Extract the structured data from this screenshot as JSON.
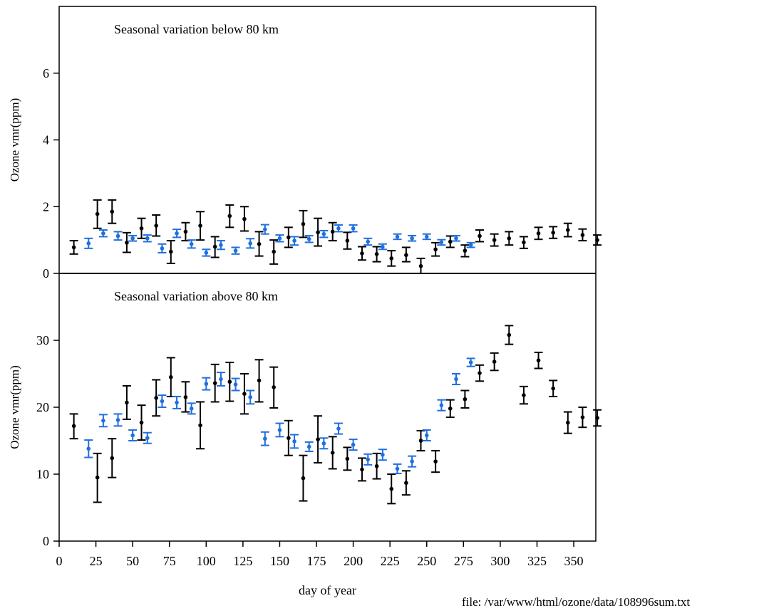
{
  "footer": {
    "file_label": "file: /var/www/html/ozone/data/108996sum.txt"
  },
  "colors": {
    "series_a": "#000000",
    "series_b": "#1f6fe0"
  },
  "chart_data": [
    {
      "type": "scatter",
      "title": "Seasonal variation below 80 km",
      "xlabel": "",
      "ylabel": "Ozone vmr(ppm)",
      "xlim": [
        0,
        365
      ],
      "ylim": [
        0,
        8
      ],
      "yticks": [
        0,
        2,
        4,
        6
      ],
      "grid": false,
      "series": [
        {
          "color": "#000000",
          "points": [
            {
              "x": 10,
              "y": 0.78,
              "lo": 0.58,
              "hi": 0.98
            },
            {
              "x": 26,
              "y": 1.78,
              "lo": 1.35,
              "hi": 2.2
            },
            {
              "x": 36,
              "y": 1.85,
              "lo": 1.5,
              "hi": 2.2
            },
            {
              "x": 46,
              "y": 0.92,
              "lo": 0.63,
              "hi": 1.22
            },
            {
              "x": 56,
              "y": 1.35,
              "lo": 1.05,
              "hi": 1.65
            },
            {
              "x": 66,
              "y": 1.43,
              "lo": 1.12,
              "hi": 1.75
            },
            {
              "x": 76,
              "y": 0.65,
              "lo": 0.3,
              "hi": 0.98
            },
            {
              "x": 86,
              "y": 1.25,
              "lo": 0.98,
              "hi": 1.52
            },
            {
              "x": 96,
              "y": 1.43,
              "lo": 1.0,
              "hi": 1.85
            },
            {
              "x": 106,
              "y": 0.8,
              "lo": 0.48,
              "hi": 1.1
            },
            {
              "x": 116,
              "y": 1.72,
              "lo": 1.38,
              "hi": 2.05
            },
            {
              "x": 126,
              "y": 1.63,
              "lo": 1.27,
              "hi": 2.0
            },
            {
              "x": 136,
              "y": 0.88,
              "lo": 0.52,
              "hi": 1.25
            },
            {
              "x": 146,
              "y": 0.65,
              "lo": 0.28,
              "hi": 1.0
            },
            {
              "x": 156,
              "y": 1.08,
              "lo": 0.78,
              "hi": 1.38
            },
            {
              "x": 166,
              "y": 1.48,
              "lo": 1.08,
              "hi": 1.88
            },
            {
              "x": 176,
              "y": 1.23,
              "lo": 0.82,
              "hi": 1.65
            },
            {
              "x": 186,
              "y": 1.25,
              "lo": 0.98,
              "hi": 1.52
            },
            {
              "x": 196,
              "y": 0.98,
              "lo": 0.73,
              "hi": 1.23
            },
            {
              "x": 206,
              "y": 0.6,
              "lo": 0.4,
              "hi": 0.8
            },
            {
              "x": 216,
              "y": 0.58,
              "lo": 0.35,
              "hi": 0.8
            },
            {
              "x": 226,
              "y": 0.45,
              "lo": 0.22,
              "hi": 0.68
            },
            {
              "x": 236,
              "y": 0.55,
              "lo": 0.35,
              "hi": 0.78
            },
            {
              "x": 246,
              "y": 0.22,
              "lo": 0.0,
              "hi": 0.45
            },
            {
              "x": 256,
              "y": 0.72,
              "lo": 0.52,
              "hi": 0.92
            },
            {
              "x": 266,
              "y": 0.95,
              "lo": 0.78,
              "hi": 1.12
            },
            {
              "x": 276,
              "y": 0.68,
              "lo": 0.5,
              "hi": 0.85
            },
            {
              "x": 286,
              "y": 1.12,
              "lo": 0.95,
              "hi": 1.3
            },
            {
              "x": 296,
              "y": 1.0,
              "lo": 0.82,
              "hi": 1.18
            },
            {
              "x": 306,
              "y": 1.05,
              "lo": 0.85,
              "hi": 1.25
            },
            {
              "x": 316,
              "y": 0.93,
              "lo": 0.75,
              "hi": 1.1
            },
            {
              "x": 326,
              "y": 1.2,
              "lo": 1.02,
              "hi": 1.38
            },
            {
              "x": 336,
              "y": 1.22,
              "lo": 1.05,
              "hi": 1.4
            },
            {
              "x": 346,
              "y": 1.3,
              "lo": 1.1,
              "hi": 1.5
            },
            {
              "x": 356,
              "y": 1.15,
              "lo": 0.98,
              "hi": 1.33
            },
            {
              "x": 366,
              "y": 1.0,
              "lo": 0.85,
              "hi": 1.15
            }
          ]
        },
        {
          "color": "#1f6fe0",
          "points": [
            {
              "x": 20,
              "y": 0.9,
              "lo": 0.75,
              "hi": 1.05
            },
            {
              "x": 30,
              "y": 1.2,
              "lo": 1.1,
              "hi": 1.3
            },
            {
              "x": 40,
              "y": 1.12,
              "lo": 1.0,
              "hi": 1.25
            },
            {
              "x": 50,
              "y": 1.05,
              "lo": 0.97,
              "hi": 1.13
            },
            {
              "x": 60,
              "y": 1.05,
              "lo": 0.95,
              "hi": 1.15
            },
            {
              "x": 70,
              "y": 0.75,
              "lo": 0.62,
              "hi": 0.88
            },
            {
              "x": 80,
              "y": 1.2,
              "lo": 1.08,
              "hi": 1.32
            },
            {
              "x": 90,
              "y": 0.88,
              "lo": 0.76,
              "hi": 1.0
            },
            {
              "x": 100,
              "y": 0.62,
              "lo": 0.52,
              "hi": 0.72
            },
            {
              "x": 110,
              "y": 0.85,
              "lo": 0.72,
              "hi": 0.98
            },
            {
              "x": 120,
              "y": 0.68,
              "lo": 0.58,
              "hi": 0.78
            },
            {
              "x": 130,
              "y": 0.9,
              "lo": 0.76,
              "hi": 1.04
            },
            {
              "x": 140,
              "y": 1.32,
              "lo": 1.18,
              "hi": 1.46
            },
            {
              "x": 150,
              "y": 1.05,
              "lo": 0.95,
              "hi": 1.15
            },
            {
              "x": 160,
              "y": 0.98,
              "lo": 0.85,
              "hi": 1.1
            },
            {
              "x": 170,
              "y": 1.03,
              "lo": 0.93,
              "hi": 1.13
            },
            {
              "x": 180,
              "y": 1.18,
              "lo": 1.08,
              "hi": 1.28
            },
            {
              "x": 190,
              "y": 1.35,
              "lo": 1.25,
              "hi": 1.45
            },
            {
              "x": 200,
              "y": 1.35,
              "lo": 1.25,
              "hi": 1.45
            },
            {
              "x": 210,
              "y": 0.95,
              "lo": 0.85,
              "hi": 1.05
            },
            {
              "x": 220,
              "y": 0.8,
              "lo": 0.72,
              "hi": 0.88
            },
            {
              "x": 230,
              "y": 1.1,
              "lo": 1.02,
              "hi": 1.18
            },
            {
              "x": 240,
              "y": 1.05,
              "lo": 0.97,
              "hi": 1.13
            },
            {
              "x": 250,
              "y": 1.1,
              "lo": 1.02,
              "hi": 1.18
            },
            {
              "x": 260,
              "y": 0.93,
              "lo": 0.85,
              "hi": 1.01
            },
            {
              "x": 270,
              "y": 1.05,
              "lo": 0.97,
              "hi": 1.13
            },
            {
              "x": 280,
              "y": 0.85,
              "lo": 0.78,
              "hi": 0.92
            }
          ]
        }
      ]
    },
    {
      "type": "scatter",
      "title": "Seasonal variation above 80 km",
      "xlabel": "day of year",
      "ylabel": "Ozone vmr(ppm)",
      "xlim": [
        0,
        365
      ],
      "ylim": [
        0,
        40
      ],
      "yticks": [
        0,
        10,
        20,
        30
      ],
      "xticks": [
        0,
        25,
        50,
        75,
        100,
        125,
        150,
        175,
        200,
        225,
        250,
        275,
        300,
        325,
        350
      ],
      "grid": false,
      "series": [
        {
          "color": "#000000",
          "points": [
            {
              "x": 10,
              "y": 17.2,
              "lo": 15.3,
              "hi": 19.0
            },
            {
              "x": 26,
              "y": 9.5,
              "lo": 5.8,
              "hi": 13.1
            },
            {
              "x": 36,
              "y": 12.4,
              "lo": 9.5,
              "hi": 15.3
            },
            {
              "x": 46,
              "y": 20.7,
              "lo": 18.2,
              "hi": 23.2
            },
            {
              "x": 56,
              "y": 17.7,
              "lo": 15.1,
              "hi": 20.3
            },
            {
              "x": 66,
              "y": 21.4,
              "lo": 18.7,
              "hi": 24.1
            },
            {
              "x": 76,
              "y": 24.5,
              "lo": 21.6,
              "hi": 27.4
            },
            {
              "x": 86,
              "y": 21.5,
              "lo": 19.3,
              "hi": 23.8
            },
            {
              "x": 96,
              "y": 17.3,
              "lo": 13.8,
              "hi": 20.8
            },
            {
              "x": 106,
              "y": 23.6,
              "lo": 20.8,
              "hi": 26.4
            },
            {
              "x": 116,
              "y": 23.8,
              "lo": 20.9,
              "hi": 26.7
            },
            {
              "x": 126,
              "y": 22.0,
              "lo": 19.0,
              "hi": 25.0
            },
            {
              "x": 136,
              "y": 24.0,
              "lo": 20.8,
              "hi": 27.1
            },
            {
              "x": 146,
              "y": 23.0,
              "lo": 19.9,
              "hi": 26.0
            },
            {
              "x": 156,
              "y": 15.4,
              "lo": 12.8,
              "hi": 18.0
            },
            {
              "x": 166,
              "y": 9.4,
              "lo": 6.0,
              "hi": 12.8
            },
            {
              "x": 176,
              "y": 15.2,
              "lo": 11.7,
              "hi": 18.7
            },
            {
              "x": 186,
              "y": 13.2,
              "lo": 10.8,
              "hi": 15.6
            },
            {
              "x": 196,
              "y": 12.3,
              "lo": 10.6,
              "hi": 14.0
            },
            {
              "x": 206,
              "y": 10.7,
              "lo": 9.0,
              "hi": 12.4
            },
            {
              "x": 216,
              "y": 11.2,
              "lo": 9.3,
              "hi": 13.1
            },
            {
              "x": 226,
              "y": 7.8,
              "lo": 5.6,
              "hi": 10.0
            },
            {
              "x": 236,
              "y": 8.7,
              "lo": 6.9,
              "hi": 10.5
            },
            {
              "x": 246,
              "y": 15.0,
              "lo": 13.5,
              "hi": 16.5
            },
            {
              "x": 256,
              "y": 11.9,
              "lo": 10.3,
              "hi": 13.5
            },
            {
              "x": 266,
              "y": 19.8,
              "lo": 18.5,
              "hi": 21.1
            },
            {
              "x": 276,
              "y": 21.2,
              "lo": 19.9,
              "hi": 22.5
            },
            {
              "x": 286,
              "y": 25.1,
              "lo": 23.9,
              "hi": 26.3
            },
            {
              "x": 296,
              "y": 26.8,
              "lo": 25.5,
              "hi": 28.1
            },
            {
              "x": 306,
              "y": 30.8,
              "lo": 29.4,
              "hi": 32.2
            },
            {
              "x": 316,
              "y": 21.8,
              "lo": 20.5,
              "hi": 23.1
            },
            {
              "x": 326,
              "y": 27.0,
              "lo": 25.8,
              "hi": 28.2
            },
            {
              "x": 336,
              "y": 22.8,
              "lo": 21.6,
              "hi": 24.0
            },
            {
              "x": 346,
              "y": 17.7,
              "lo": 16.1,
              "hi": 19.3
            },
            {
              "x": 356,
              "y": 18.5,
              "lo": 17.0,
              "hi": 20.0
            },
            {
              "x": 366,
              "y": 18.4,
              "lo": 17.2,
              "hi": 19.6
            }
          ]
        },
        {
          "color": "#1f6fe0",
          "points": [
            {
              "x": 20,
              "y": 13.8,
              "lo": 12.5,
              "hi": 15.1
            },
            {
              "x": 30,
              "y": 18.0,
              "lo": 17.1,
              "hi": 18.9
            },
            {
              "x": 40,
              "y": 18.1,
              "lo": 17.2,
              "hi": 19.0
            },
            {
              "x": 50,
              "y": 15.8,
              "lo": 15.0,
              "hi": 16.6
            },
            {
              "x": 60,
              "y": 15.4,
              "lo": 14.6,
              "hi": 16.2
            },
            {
              "x": 70,
              "y": 20.9,
              "lo": 20.0,
              "hi": 21.8
            },
            {
              "x": 80,
              "y": 20.7,
              "lo": 19.8,
              "hi": 21.6
            },
            {
              "x": 90,
              "y": 19.8,
              "lo": 19.0,
              "hi": 20.6
            },
            {
              "x": 100,
              "y": 23.5,
              "lo": 22.6,
              "hi": 24.4
            },
            {
              "x": 110,
              "y": 24.2,
              "lo": 23.2,
              "hi": 25.2
            },
            {
              "x": 120,
              "y": 23.4,
              "lo": 22.5,
              "hi": 24.3
            },
            {
              "x": 130,
              "y": 21.5,
              "lo": 20.5,
              "hi": 22.5
            },
            {
              "x": 140,
              "y": 15.3,
              "lo": 14.3,
              "hi": 16.3
            },
            {
              "x": 150,
              "y": 16.6,
              "lo": 15.6,
              "hi": 17.6
            },
            {
              "x": 160,
              "y": 14.9,
              "lo": 13.9,
              "hi": 15.9
            },
            {
              "x": 170,
              "y": 14.1,
              "lo": 13.4,
              "hi": 14.8
            },
            {
              "x": 180,
              "y": 14.6,
              "lo": 13.8,
              "hi": 15.4
            },
            {
              "x": 190,
              "y": 16.8,
              "lo": 16.0,
              "hi": 17.6
            },
            {
              "x": 200,
              "y": 14.4,
              "lo": 13.6,
              "hi": 15.2
            },
            {
              "x": 210,
              "y": 12.2,
              "lo": 11.4,
              "hi": 13.0
            },
            {
              "x": 220,
              "y": 12.9,
              "lo": 12.1,
              "hi": 13.7
            },
            {
              "x": 230,
              "y": 10.8,
              "lo": 10.1,
              "hi": 11.5
            },
            {
              "x": 240,
              "y": 11.9,
              "lo": 11.1,
              "hi": 12.7
            },
            {
              "x": 250,
              "y": 15.8,
              "lo": 15.0,
              "hi": 16.6
            },
            {
              "x": 260,
              "y": 20.3,
              "lo": 19.5,
              "hi": 21.1
            },
            {
              "x": 270,
              "y": 24.2,
              "lo": 23.4,
              "hi": 25.0
            },
            {
              "x": 280,
              "y": 26.7,
              "lo": 26.1,
              "hi": 27.3
            }
          ]
        }
      ]
    }
  ]
}
